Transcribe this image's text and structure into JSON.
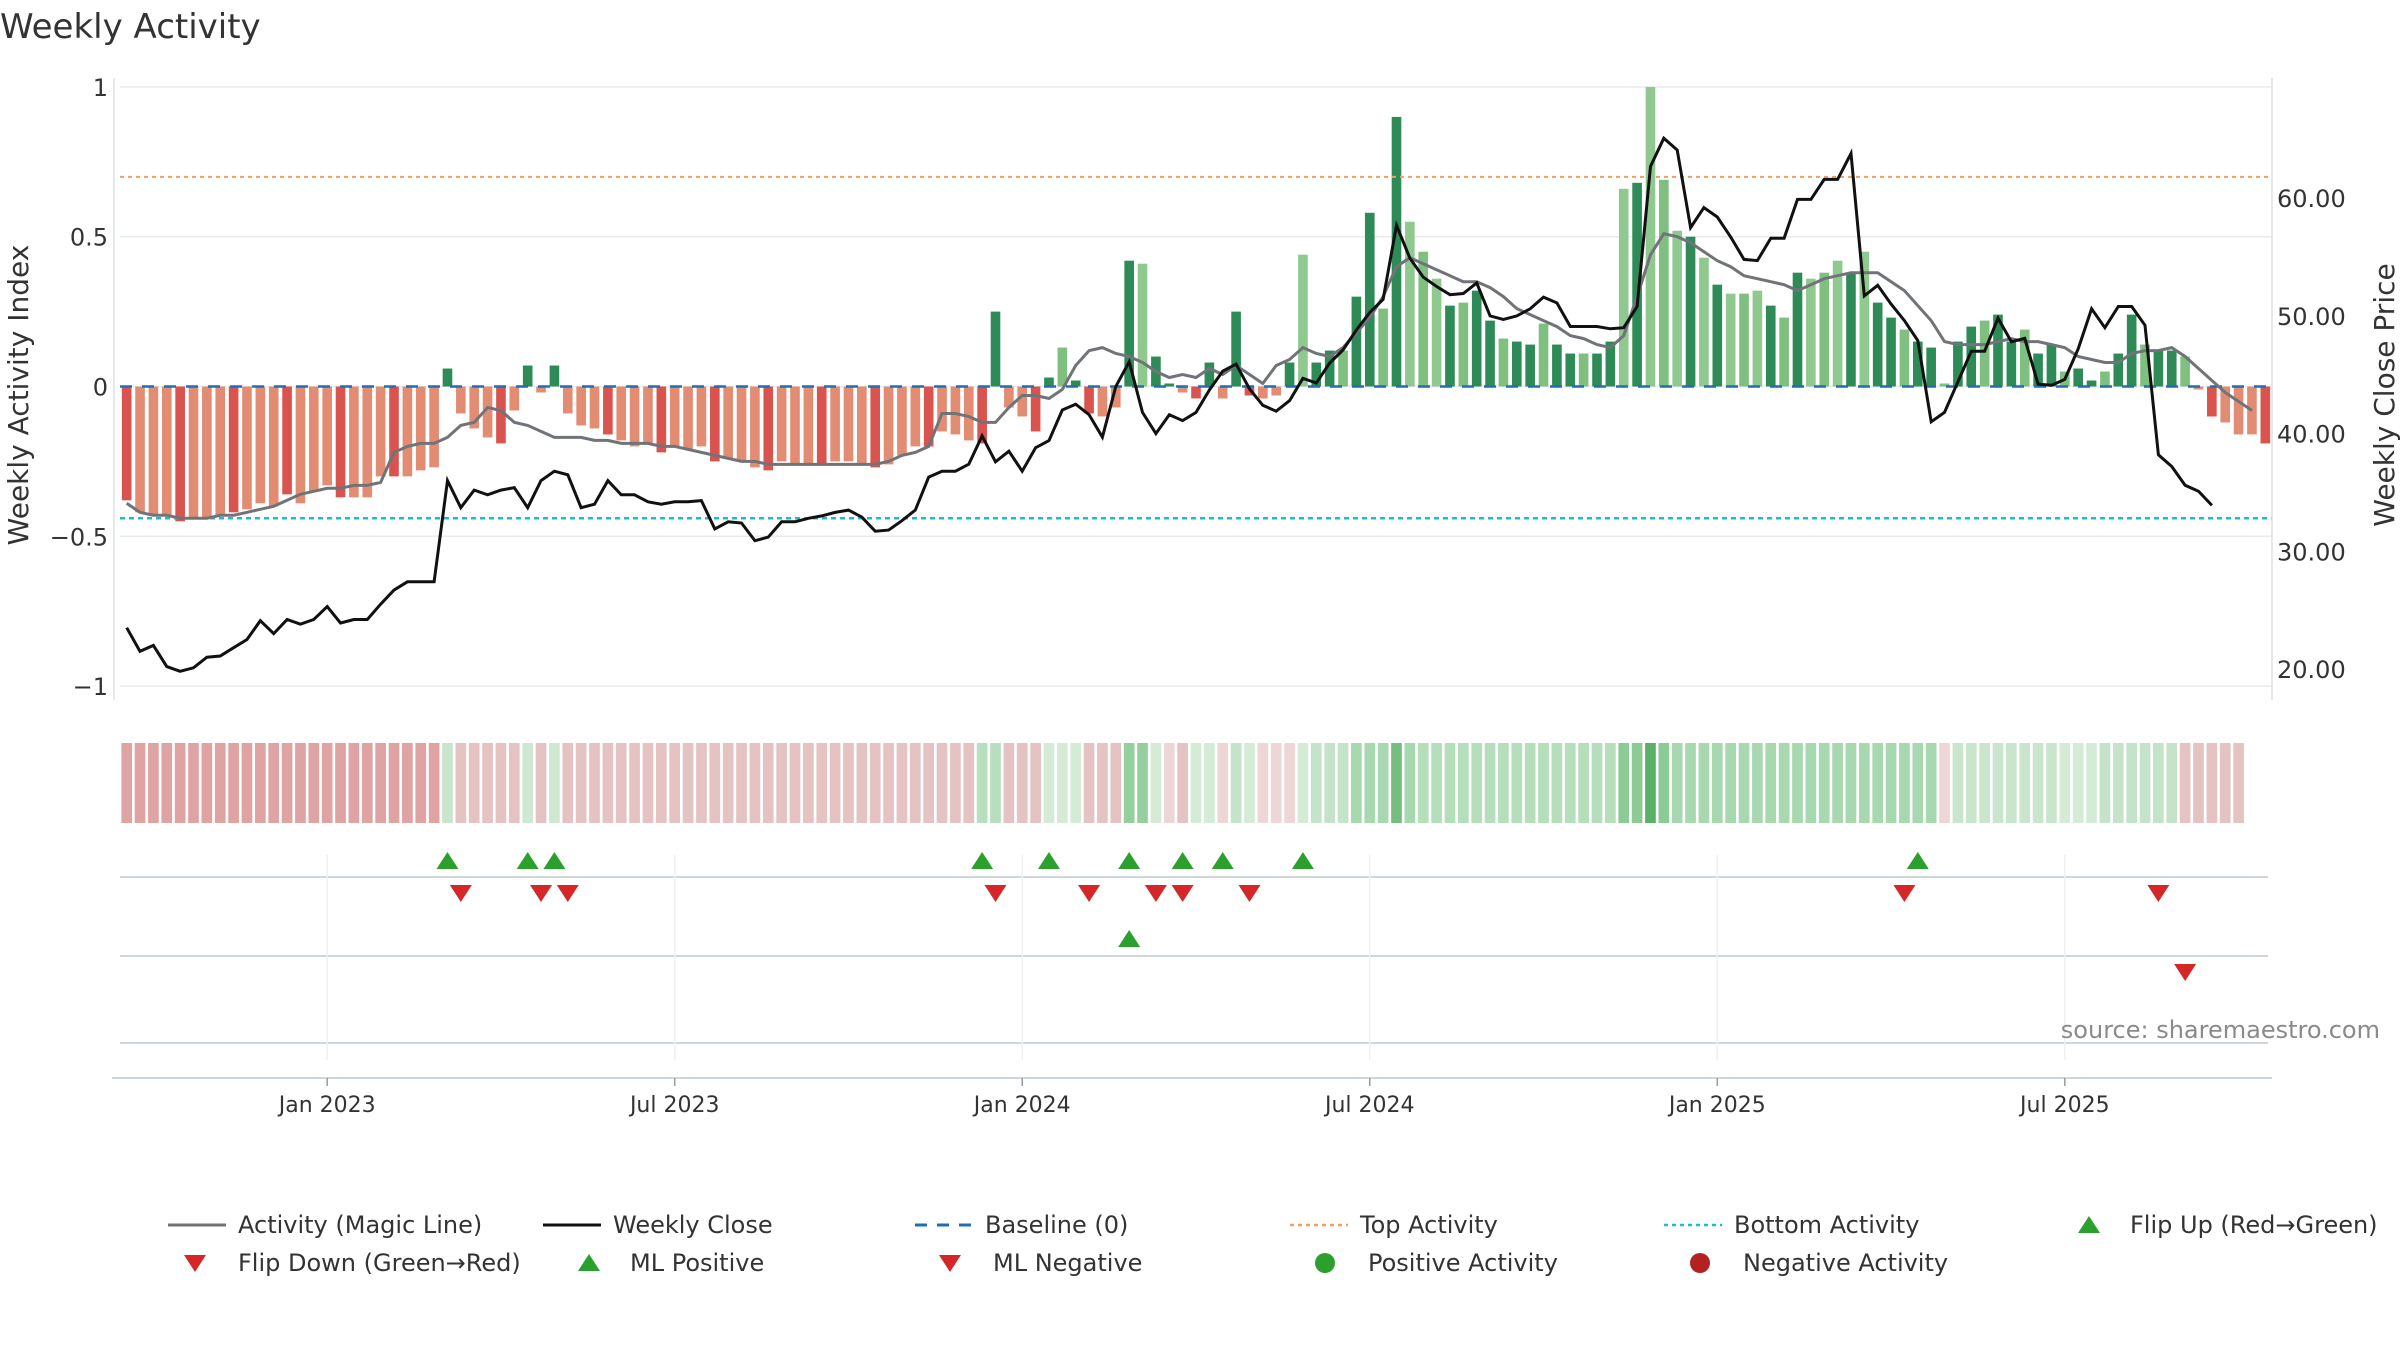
{
  "chart_data": {
    "type": "bar",
    "title": "Weekly Activity",
    "ylabel_left": "Weekly Activity Index",
    "ylabel_right": "Weekly Close Price",
    "ylim_left": [
      -1.1,
      1.1
    ],
    "ylim_right": [
      16,
      72
    ],
    "yticks_left": [
      {
        "v": 1,
        "label": "1"
      },
      {
        "v": 0.5,
        "label": "0.5"
      },
      {
        "v": 0,
        "label": "0"
      },
      {
        "v": -0.5,
        "label": "−0.5"
      },
      {
        "v": -1,
        "label": "−1"
      }
    ],
    "yticks_right": [
      {
        "v": 60,
        "label": "60.00"
      },
      {
        "v": 50,
        "label": "50.00"
      },
      {
        "v": 40,
        "label": "40.00"
      },
      {
        "v": 30,
        "label": "30.00"
      },
      {
        "v": 20,
        "label": "20.00"
      }
    ],
    "xticks": [
      {
        "i": 15,
        "label": "Jan 2023"
      },
      {
        "i": 41,
        "label": "Jul 2023"
      },
      {
        "i": 67,
        "label": "Jan 2024"
      },
      {
        "i": 93,
        "label": "Jul 2024"
      },
      {
        "i": 119,
        "label": "Jan 2025"
      },
      {
        "i": 145,
        "label": "Jul 2025"
      }
    ],
    "top_activity": 0.7,
    "bottom_activity": -0.44,
    "source": "source: sharemaestro.com",
    "legend": [
      {
        "label": "Activity (Magic Line)",
        "kind": "line",
        "color": "#707478"
      },
      {
        "label": "Weekly Close",
        "kind": "line",
        "color": "#111111"
      },
      {
        "label": "Baseline (0)",
        "kind": "dash",
        "color": "#1f6fb2"
      },
      {
        "label": "Top Activity",
        "kind": "dot",
        "color": "#f0a060"
      },
      {
        "label": "Bottom Activity",
        "kind": "dot",
        "color": "#17becf"
      },
      {
        "label": "Flip Up (Red→Green)",
        "kind": "tri-up",
        "color": "#2ca02c"
      },
      {
        "label": "Flip Down (Green→Red)",
        "kind": "tri-down",
        "color": "#d62728"
      },
      {
        "label": "ML Positive",
        "kind": "tri-up",
        "color": "#2ca02c"
      },
      {
        "label": "ML Negative",
        "kind": "tri-down",
        "color": "#d62728"
      },
      {
        "label": "Positive Activity",
        "kind": "circle",
        "color": "#2ca02c"
      },
      {
        "label": "Negative Activity",
        "kind": "circle",
        "color": "#b22222"
      }
    ],
    "activity": [
      -0.38,
      -0.42,
      -0.43,
      -0.43,
      -0.45,
      -0.44,
      -0.44,
      -0.43,
      -0.42,
      -0.41,
      -0.39,
      -0.4,
      -0.36,
      -0.39,
      -0.35,
      -0.33,
      -0.37,
      -0.37,
      -0.37,
      -0.3,
      -0.3,
      -0.3,
      -0.28,
      -0.27,
      0.06,
      -0.09,
      -0.14,
      -0.17,
      -0.19,
      -0.08,
      0.07,
      -0.02,
      0.07,
      -0.09,
      -0.13,
      -0.14,
      -0.16,
      -0.18,
      -0.2,
      -0.19,
      -0.22,
      -0.2,
      -0.21,
      -0.2,
      -0.25,
      -0.24,
      -0.25,
      -0.27,
      -0.28,
      -0.25,
      -0.26,
      -0.26,
      -0.26,
      -0.25,
      -0.25,
      -0.26,
      -0.27,
      -0.26,
      -0.23,
      -0.2,
      -0.2,
      -0.15,
      -0.16,
      -0.18,
      -0.19,
      0.25,
      -0.07,
      -0.1,
      -0.15,
      0.03,
      0.13,
      0.02,
      -0.09,
      -0.1,
      -0.07,
      0.42,
      0.41,
      0.1,
      0.01,
      -0.02,
      -0.04,
      0.08,
      -0.04,
      0.25,
      -0.03,
      -0.04,
      -0.03,
      0.08,
      0.44,
      0.08,
      0.12,
      0.12,
      0.3,
      0.58,
      0.26,
      0.9,
      0.55,
      0.45,
      0.36,
      0.27,
      0.28,
      0.32,
      0.22,
      0.16,
      0.15,
      0.14,
      0.21,
      0.14,
      0.11,
      0.11,
      0.11,
      0.15,
      0.66,
      0.68,
      1.0,
      0.69,
      0.52,
      0.5,
      0.43,
      0.34,
      0.31,
      0.31,
      0.32,
      0.27,
      0.23,
      0.38,
      0.36,
      0.38,
      0.42,
      0.38,
      0.45,
      0.28,
      0.23,
      0.19,
      0.15,
      0.13,
      0.01,
      0.15,
      0.2,
      0.22,
      0.24,
      0.15,
      0.19,
      0.11,
      0.14,
      0.05,
      0.06,
      0.02,
      0.05,
      0.11,
      0.24,
      0.14,
      0.12,
      0.12,
      0.1,
      -0.01,
      -0.1,
      -0.12,
      -0.16,
      -0.16,
      -0.19
    ],
    "magic": [
      -0.39,
      -0.42,
      -0.43,
      -0.43,
      -0.44,
      -0.44,
      -0.44,
      -0.43,
      -0.43,
      -0.42,
      -0.41,
      -0.4,
      -0.38,
      -0.36,
      -0.35,
      -0.34,
      -0.34,
      -0.33,
      -0.33,
      -0.32,
      -0.22,
      -0.2,
      -0.19,
      -0.19,
      -0.17,
      -0.13,
      -0.12,
      -0.07,
      -0.08,
      -0.12,
      -0.13,
      -0.15,
      -0.17,
      -0.17,
      -0.17,
      -0.18,
      -0.18,
      -0.19,
      -0.19,
      -0.19,
      -0.2,
      -0.2,
      -0.21,
      -0.22,
      -0.23,
      -0.24,
      -0.25,
      -0.25,
      -0.26,
      -0.26,
      -0.26,
      -0.26,
      -0.26,
      -0.26,
      -0.26,
      -0.26,
      -0.26,
      -0.25,
      -0.23,
      -0.22,
      -0.2,
      -0.09,
      -0.09,
      -0.1,
      -0.12,
      -0.12,
      -0.07,
      -0.03,
      -0.03,
      -0.04,
      -0.01,
      0.07,
      0.12,
      0.13,
      0.11,
      0.1,
      0.08,
      0.05,
      0.03,
      0.04,
      0.03,
      0.06,
      0.04,
      0.07,
      0.04,
      0.01,
      0.07,
      0.09,
      0.13,
      0.11,
      0.1,
      0.13,
      0.18,
      0.23,
      0.3,
      0.4,
      0.43,
      0.41,
      0.39,
      0.37,
      0.35,
      0.35,
      0.33,
      0.3,
      0.26,
      0.24,
      0.22,
      0.2,
      0.17,
      0.16,
      0.14,
      0.13,
      0.17,
      0.3,
      0.44,
      0.51,
      0.5,
      0.48,
      0.45,
      0.42,
      0.4,
      0.37,
      0.36,
      0.35,
      0.34,
      0.32,
      0.34,
      0.36,
      0.37,
      0.38,
      0.38,
      0.38,
      0.35,
      0.32,
      0.27,
      0.22,
      0.15,
      0.14,
      0.14,
      0.14,
      0.15,
      0.16,
      0.15,
      0.15,
      0.14,
      0.13,
      0.1,
      0.09,
      0.08,
      0.08,
      0.11,
      0.12,
      0.12,
      0.13,
      0.1,
      0.06,
      0.02,
      -0.02,
      -0.05,
      -0.08
    ],
    "close": [
      23.5,
      21.5,
      22.0,
      20.2,
      19.8,
      20.1,
      21.0,
      21.1,
      21.8,
      22.5,
      24.1,
      23.0,
      24.2,
      23.8,
      24.2,
      25.3,
      23.9,
      24.2,
      24.2,
      25.5,
      26.7,
      27.4,
      27.4,
      27.4,
      36.0,
      33.7,
      35.2,
      34.8,
      35.2,
      35.4,
      33.7,
      36.0,
      36.8,
      36.5,
      33.7,
      34.0,
      36.0,
      34.8,
      34.8,
      34.2,
      34.0,
      34.2,
      34.2,
      34.3,
      31.9,
      32.5,
      32.4,
      30.9,
      31.2,
      32.5,
      32.5,
      32.8,
      33.0,
      33.3,
      33.5,
      32.9,
      31.7,
      31.8,
      32.6,
      33.5,
      36.3,
      36.8,
      36.8,
      37.4,
      39.8,
      37.6,
      38.5,
      36.8,
      38.8,
      39.4,
      42.0,
      42.5,
      41.6,
      39.7,
      44.0,
      46.1,
      41.8,
      40.0,
      41.6,
      41.1,
      41.8,
      43.7,
      45.3,
      45.9,
      43.8,
      42.4,
      41.9,
      42.8,
      44.7,
      44.3,
      46.0,
      47.1,
      48.8,
      50.3,
      51.4,
      57.7,
      54.9,
      53.3,
      52.5,
      51.8,
      51.9,
      52.8,
      50.0,
      49.7,
      50.0,
      50.6,
      51.6,
      51.1,
      49.1,
      49.1,
      49.1,
      48.9,
      49.0,
      50.8,
      62.7,
      65.1,
      64.1,
      57.5,
      59.2,
      58.4,
      56.7,
      54.8,
      54.7,
      56.6,
      56.6,
      59.9,
      59.9,
      61.6,
      61.6,
      63.8,
      51.7,
      52.6,
      51.0,
      49.6,
      47.9,
      41.0,
      41.8,
      44.4,
      47.0,
      47.0,
      49.8,
      47.8,
      48.1,
      44.2,
      44.1,
      44.6,
      47.2,
      50.6,
      49.0,
      50.8,
      50.8,
      49.2,
      38.2,
      37.2,
      35.6,
      35.1,
      33.9
    ],
    "heatmap": [
      "#dfa3a3",
      "#dfa3a3",
      "#dfa3a3",
      "#dfa3a3",
      "#dfa3a3",
      "#dfa3a3",
      "#dfa3a3",
      "#dfa3a3",
      "#dfa3a3",
      "#dfa3a3",
      "#dfa3a3",
      "#dfa3a3",
      "#dfa3a3",
      "#dfa3a3",
      "#dfa3a3",
      "#dfa3a3",
      "#dfa3a3",
      "#dfa3a3",
      "#dfa3a3",
      "#dfa3a3",
      "#dfa3a3",
      "#dfa3a3",
      "#dfa3a3",
      "#dfa3a3",
      "#c9e6cc",
      "#e6c3c3",
      "#e6c3c3",
      "#e6c3c3",
      "#e6c3c3",
      "#e6c3c3",
      "#cfe8d1",
      "#e6c3c3",
      "#cfe8d1",
      "#e6c3c3",
      "#e6c3c3",
      "#e6c3c3",
      "#e6c3c3",
      "#e6c3c3",
      "#e6c3c3",
      "#e6c3c3",
      "#e6c3c3",
      "#e6c3c3",
      "#e6c3c3",
      "#e6c3c3",
      "#e6c3c3",
      "#e6c3c3",
      "#e6c3c3",
      "#e6c3c3",
      "#e6c3c3",
      "#e6c3c3",
      "#e6c3c3",
      "#e6c3c3",
      "#e6c3c3",
      "#e6c3c3",
      "#e6c3c3",
      "#e6c3c3",
      "#e6c3c3",
      "#e6c3c3",
      "#e6c3c3",
      "#e6c3c3",
      "#e6c3c3",
      "#e6c3c3",
      "#e6c3c3",
      "#e6c3c3",
      "#b8dfbd",
      "#b8dfbd",
      "#e6c3c3",
      "#e6c3c3",
      "#e6c3c3",
      "#d4ecd6",
      "#d4ecd6",
      "#d4ecd6",
      "#e6c3c3",
      "#e6c3c3",
      "#e6c3c3",
      "#96cf9e",
      "#96cf9e",
      "#d4ecd6",
      "#eed6d6",
      "#e6c3c3",
      "#d4ecd6",
      "#d4ecd6",
      "#eed6d6",
      "#c4e3c8",
      "#d4ecd6",
      "#eed6d6",
      "#eed6d6",
      "#eed6d6",
      "#d4ecd6",
      "#c4e3c8",
      "#c4e3c8",
      "#c4e3c8",
      "#a8d8b0",
      "#a8d8b0",
      "#a8d8b0",
      "#74be80",
      "#a8d8b0",
      "#b5deba",
      "#b5deba",
      "#b5deba",
      "#b5deba",
      "#b5deba",
      "#b5deba",
      "#b5deba",
      "#b5deba",
      "#b5deba",
      "#b5deba",
      "#b5deba",
      "#b5deba",
      "#b5deba",
      "#b5deba",
      "#b5deba",
      "#8ccb95",
      "#8ccb95",
      "#5bb067",
      "#8ccb95",
      "#a8d8b0",
      "#a8d8b0",
      "#a8d8b0",
      "#a8d8b0",
      "#a8d8b0",
      "#a8d8b0",
      "#a8d8b0",
      "#a8d8b0",
      "#a8d8b0",
      "#a8d8b0",
      "#a8d8b0",
      "#a8d8b0",
      "#a8d8b0",
      "#a8d8b0",
      "#a8d8b0",
      "#a8d8b0",
      "#a8d8b0",
      "#a8d8b0",
      "#a8d8b0",
      "#a8d8b0",
      "#eed6d6",
      "#c9e6cc",
      "#c9e6cc",
      "#c9e6cc",
      "#c9e6cc",
      "#c9e6cc",
      "#c9e6cc",
      "#c9e6cc",
      "#c9e6cc",
      "#d4ecd6",
      "#d4ecd6",
      "#d4ecd6",
      "#c4e3c8",
      "#c4e3c8",
      "#c4e3c8",
      "#c4e3c8",
      "#c4e3c8",
      "#c4e3c8",
      "#e6c3c3",
      "#e6c3c3",
      "#e6c3c3",
      "#e6c3c3",
      "#e6c3c3"
    ],
    "flip_up": [
      24,
      30,
      32,
      64,
      69,
      75,
      79,
      82,
      88,
      134
    ],
    "flip_down": [
      25,
      31,
      33,
      65,
      72,
      77,
      79,
      84,
      133,
      152
    ],
    "ml_positive": [
      75
    ],
    "ml_negative": [
      154
    ]
  }
}
